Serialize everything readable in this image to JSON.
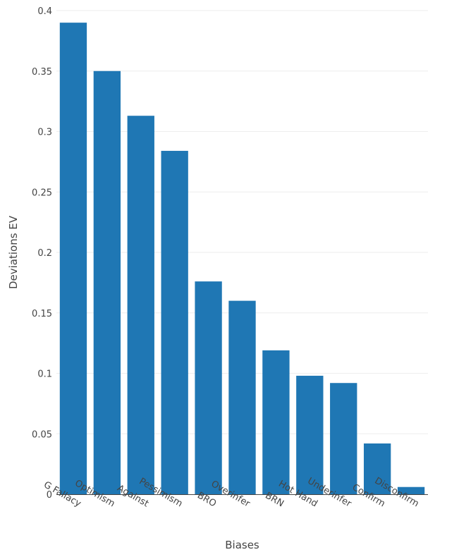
{
  "chart_data": {
    "type": "bar",
    "xlabel": "Biases",
    "ylabel": "Deviations EV",
    "categories": [
      "G Fallacy",
      "Optimism",
      "Against",
      "Pessimism",
      "BRO",
      "Overinfer",
      "BRN",
      "Hot Hand",
      "Underinfer",
      "Confirm",
      "Disconfirm"
    ],
    "values": [
      0.39,
      0.35,
      0.313,
      0.284,
      0.176,
      0.16,
      0.119,
      0.098,
      0.092,
      0.042,
      0.006
    ],
    "ylim": [
      0,
      0.4
    ],
    "yticks": [
      0,
      0.05,
      0.1,
      0.15,
      0.2,
      0.25,
      0.3,
      0.35,
      0.4
    ],
    "ytick_labels": [
      "0",
      "0.05",
      "0.1",
      "0.15",
      "0.2",
      "0.25",
      "0.3",
      "0.35",
      "0.4"
    ],
    "grid": true,
    "bar_color": "#1f77b4",
    "grid_color": "#eeeeee"
  }
}
